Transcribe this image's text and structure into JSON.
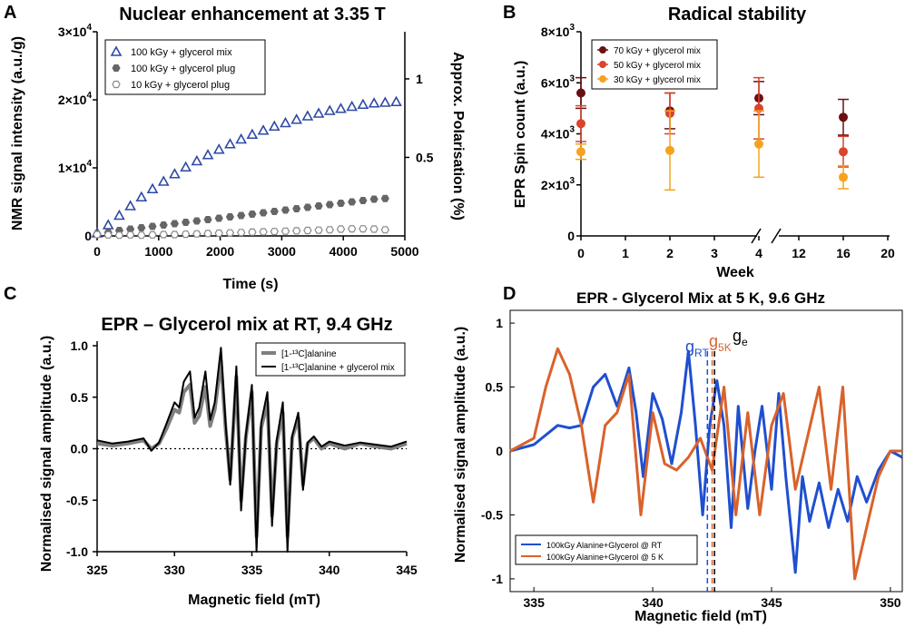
{
  "panels": {
    "A": {
      "letter": "A"
    },
    "B": {
      "letter": "B"
    },
    "C": {
      "letter": "C"
    },
    "D": {
      "letter": "D"
    }
  },
  "chart_data": [
    {
      "id": "A",
      "type": "scatter",
      "title": "Nuclear enhancement at 3.35 T",
      "xlabel": "Time (s)",
      "ylabel": "NMR signal intensity (a.u./g)",
      "y2label": "Approx. Polarisation (%)",
      "xlim": [
        0,
        5000
      ],
      "ylim": [
        0,
        30000
      ],
      "y2lim": [
        0,
        1.3
      ],
      "xticks": [
        "0",
        "1000",
        "2000",
        "3000",
        "4000",
        "5000"
      ],
      "yticks": [
        {
          "v": 0,
          "label": "0"
        },
        {
          "v": 10000,
          "label": "1×10⁴"
        },
        {
          "v": 20000,
          "label": "2×10⁴"
        },
        {
          "v": 30000,
          "label": "3×10⁴"
        }
      ],
      "y2ticks": [
        "0.5",
        "1"
      ],
      "legend_position": "top-left",
      "series": [
        {
          "name": "100 kGy + glycerol mix",
          "marker": "triangle",
          "color": "#2e48a6",
          "x": [
            0,
            180,
            360,
            540,
            720,
            900,
            1080,
            1260,
            1440,
            1620,
            1800,
            1980,
            2160,
            2340,
            2520,
            2700,
            2880,
            3060,
            3240,
            3420,
            3600,
            3780,
            3960,
            4140,
            4320,
            4500,
            4680,
            4860
          ],
          "y": [
            400,
            1600,
            3000,
            4400,
            5700,
            6900,
            8000,
            9100,
            10100,
            11000,
            11900,
            12700,
            13500,
            14200,
            14900,
            15500,
            16100,
            16600,
            17100,
            17600,
            18000,
            18400,
            18700,
            19000,
            19300,
            19500,
            19600,
            19700
          ]
        },
        {
          "name": "100 kGy + glycerol plug",
          "marker": "hexagon-filled",
          "color": "#666666",
          "x": [
            0,
            180,
            360,
            540,
            720,
            900,
            1080,
            1260,
            1440,
            1620,
            1800,
            1980,
            2160,
            2340,
            2520,
            2700,
            2880,
            3060,
            3240,
            3420,
            3600,
            3780,
            3960,
            4140,
            4320,
            4500,
            4680
          ],
          "y": [
            300,
            500,
            800,
            1000,
            1200,
            1400,
            1600,
            1800,
            2000,
            2200,
            2400,
            2600,
            2800,
            3000,
            3200,
            3400,
            3600,
            3800,
            4000,
            4200,
            4400,
            4600,
            4800,
            5000,
            5200,
            5400,
            5500
          ]
        },
        {
          "name": "10 kGy + glycerol plug",
          "marker": "hexagon-open",
          "color": "#888888",
          "x": [
            0,
            180,
            360,
            540,
            720,
            900,
            1080,
            1260,
            1440,
            1620,
            1800,
            1980,
            2160,
            2340,
            2520,
            2700,
            2880,
            3060,
            3240,
            3420,
            3600,
            3780,
            3960,
            4140,
            4320,
            4500,
            4680
          ],
          "y": [
            200,
            150,
            100,
            150,
            100,
            150,
            200,
            200,
            250,
            300,
            350,
            400,
            450,
            500,
            550,
            600,
            650,
            700,
            750,
            800,
            850,
            900,
            1000,
            1050,
            1050,
            1000,
            900
          ]
        }
      ]
    },
    {
      "id": "B",
      "type": "scatter",
      "title": "Radical stability",
      "xlabel": "Week",
      "ylabel": "EPR Spin count (a.u.)",
      "ylim": [
        0,
        8000
      ],
      "xticks_left": [
        "0",
        "1",
        "2",
        "3",
        "4"
      ],
      "xticks_right": [
        "12",
        "16",
        "20"
      ],
      "broken_axis": true,
      "yticks": [
        {
          "v": 0,
          "label": "0"
        },
        {
          "v": 2000,
          "label": "2×10³"
        },
        {
          "v": 4000,
          "label": "4×10³"
        },
        {
          "v": 6000,
          "label": "6×10³"
        },
        {
          "v": 8000,
          "label": "8×10³"
        }
      ],
      "legend_position": "top-left",
      "series": [
        {
          "name": "70 kGy + glycerol mix",
          "color": "#6b0f12",
          "x": [
            0,
            2,
            4,
            16
          ],
          "y": [
            5600,
            4900,
            5400,
            4650
          ],
          "err": [
            600,
            700,
            650,
            700
          ]
        },
        {
          "name": "50 kGy + glycerol mix",
          "color": "#d9442b",
          "x": [
            0,
            2,
            4,
            16
          ],
          "y": [
            4400,
            4800,
            5000,
            3300
          ],
          "err": [
            700,
            800,
            1200,
            600
          ]
        },
        {
          "name": "30 kGy + glycerol mix",
          "color": "#f5a21f",
          "x": [
            0,
            2,
            4,
            16
          ],
          "y": [
            3300,
            3350,
            3600,
            2300
          ],
          "err": [
            300,
            1550,
            1300,
            450
          ]
        }
      ]
    },
    {
      "id": "C",
      "type": "line",
      "title": "EPR – Glycerol mix at RT, 9.4 GHz",
      "xlabel": "Magnetic field (mT)",
      "ylabel": "Normalised signal amplitude  (a.u.)",
      "xlim": [
        325,
        345
      ],
      "ylim": [
        -1.0,
        1.0
      ],
      "xticks": [
        "325",
        "330",
        "335",
        "340",
        "345"
      ],
      "yticks": [
        "-1.0",
        "-0.5",
        "0.0",
        "0.5",
        "1.0"
      ],
      "legend_position": "top-right",
      "series": [
        {
          "name": "[1-¹³C]alanine",
          "color": "#7f7f7f",
          "x": [
            325,
            326,
            327,
            328,
            328.5,
            329,
            329.5,
            330,
            330.3,
            330.6,
            331,
            331.3,
            331.6,
            332,
            332.3,
            332.6,
            333,
            333.3,
            333.6,
            334,
            334.3,
            334.6,
            335,
            335.3,
            335.6,
            336,
            336.3,
            336.6,
            337,
            337.3,
            337.6,
            338,
            338.3,
            338.6,
            339,
            339.5,
            340,
            341,
            342,
            343,
            344,
            345
          ],
          "y": [
            0.05,
            0.03,
            0.05,
            0.08,
            0.0,
            0.05,
            0.2,
            0.38,
            0.35,
            0.55,
            0.62,
            0.25,
            0.32,
            0.6,
            0.22,
            0.38,
            0.85,
            0.2,
            -0.3,
            0.7,
            -0.5,
            0.1,
            0.55,
            -0.85,
            0.2,
            0.45,
            -0.65,
            0.05,
            0.35,
            -0.85,
            0.1,
            0.3,
            -0.35,
            0.05,
            0.1,
            0.0,
            0.05,
            0.0,
            0.05,
            0.02,
            0.0,
            0.05
          ]
        },
        {
          "name": "[1-¹³C]alanine + glycerol mix",
          "color": "#000000",
          "x": [
            325,
            326,
            327,
            328,
            328.5,
            329,
            329.5,
            330,
            330.3,
            330.6,
            331,
            331.3,
            331.6,
            332,
            332.3,
            332.6,
            333,
            333.3,
            333.6,
            334,
            334.3,
            334.6,
            335,
            335.3,
            335.6,
            336,
            336.3,
            336.6,
            337,
            337.3,
            337.6,
            338,
            338.3,
            338.6,
            339,
            339.5,
            340,
            341,
            342,
            343,
            344,
            345
          ],
          "y": [
            0.08,
            0.05,
            0.07,
            0.1,
            -0.02,
            0.06,
            0.25,
            0.45,
            0.4,
            0.65,
            0.75,
            0.3,
            0.4,
            0.75,
            0.28,
            0.45,
            0.98,
            0.25,
            -0.35,
            0.8,
            -0.6,
            0.12,
            0.62,
            -1.0,
            0.25,
            0.55,
            -0.75,
            0.08,
            0.45,
            -1.0,
            0.12,
            0.35,
            -0.4,
            0.06,
            0.12,
            0.02,
            0.07,
            0.03,
            0.06,
            0.04,
            0.02,
            0.07
          ]
        }
      ]
    },
    {
      "id": "D",
      "type": "line",
      "title": "EPR - Glycerol Mix at 5 K, 9.6 GHz",
      "xlabel": "Magnetic field (mT)",
      "ylabel": "Normalised signal amplitude (a.u.)",
      "xlim": [
        334,
        350.5
      ],
      "ylim": [
        -1.1,
        1.1
      ],
      "xticks": [
        "335",
        "340",
        "345",
        "350"
      ],
      "yticks": [
        "-1",
        "-0.5",
        "0",
        "0.5",
        "1"
      ],
      "legend_position": "bottom-left",
      "annotations": [
        {
          "label": "g",
          "sub": "RT",
          "color": "#1f4fd0",
          "x": 342.3
        },
        {
          "label": "g",
          "sub": "5K",
          "color": "#d9622b",
          "x": 342.5
        },
        {
          "label": "g",
          "sub": "e",
          "color": "#000000",
          "x": 342.6
        }
      ],
      "series": [
        {
          "name": "100kGy Alanine+Glycerol @ RT",
          "color": "#1f4fd0",
          "x": [
            334,
            335,
            336,
            336.5,
            337,
            337.5,
            338,
            338.5,
            339,
            339.3,
            339.6,
            340,
            340.4,
            340.8,
            341.2,
            341.5,
            341.8,
            342.1,
            342.4,
            342.7,
            343,
            343.3,
            343.6,
            344,
            344.3,
            344.6,
            345,
            345.3,
            345.6,
            346,
            346.3,
            346.6,
            347,
            347.4,
            347.8,
            348.2,
            348.6,
            349,
            349.5,
            350,
            350.5
          ],
          "y": [
            0,
            0.05,
            0.2,
            0.18,
            0.2,
            0.5,
            0.6,
            0.35,
            0.65,
            0.3,
            -0.2,
            0.45,
            0.25,
            -0.1,
            0.3,
            0.78,
            0.2,
            -0.5,
            0.2,
            0.55,
            0.2,
            -0.6,
            0.35,
            -0.45,
            0.0,
            0.35,
            -0.3,
            0.45,
            -0.2,
            -0.95,
            -0.2,
            -0.55,
            -0.25,
            -0.6,
            -0.3,
            -0.55,
            -0.2,
            -0.4,
            -0.15,
            0.0,
            -0.05
          ]
        },
        {
          "name": "100kGy Alanine+Glycerol @ 5 K",
          "color": "#d9622b",
          "x": [
            334,
            335,
            335.5,
            336,
            336.5,
            337,
            337.5,
            338,
            338.5,
            339,
            339.5,
            340,
            340.5,
            341,
            341.5,
            342,
            342.5,
            343,
            343.5,
            344,
            344.5,
            345,
            345.5,
            346,
            346.5,
            347,
            347.5,
            348,
            348.5,
            349,
            349.5,
            350,
            350.5
          ],
          "y": [
            0,
            0.1,
            0.5,
            0.8,
            0.6,
            0.2,
            -0.4,
            0.2,
            0.3,
            0.6,
            -0.5,
            0.3,
            -0.1,
            -0.15,
            -0.05,
            0.1,
            -0.15,
            0.5,
            -0.5,
            0.3,
            -0.5,
            0.2,
            0.45,
            -0.3,
            0.1,
            0.5,
            -0.3,
            0.5,
            -1.0,
            -0.6,
            -0.2,
            0.0,
            0.0
          ]
        }
      ]
    }
  ]
}
